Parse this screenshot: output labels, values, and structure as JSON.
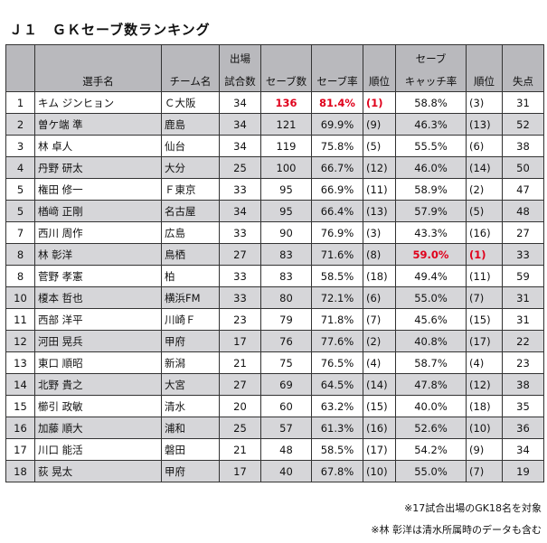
{
  "title": "Ｊ１　ＧＫセーブ数ランキング",
  "headers": {
    "top_matches": "出場",
    "top_catch": "セーブ",
    "name": "選手名",
    "team": "チーム名",
    "matches": "試合数",
    "saves": "セーブ数",
    "save_rate": "セーブ率",
    "rank1": "順位",
    "catch_rate": "キャッチ率",
    "rank2": "順位",
    "goals": "失点"
  },
  "rows": [
    {
      "no": "1",
      "name": "キム ジンヒョン",
      "team": "Ｃ大阪",
      "matches": "34",
      "saves": "136",
      "save_rate": "81.4%",
      "rank1": "(1)",
      "catch_rate": "58.8%",
      "rank2": "(3)",
      "goals": "31"
    },
    {
      "no": "2",
      "name": "曽ケ端 準",
      "team": "鹿島",
      "matches": "34",
      "saves": "121",
      "save_rate": "69.9%",
      "rank1": "(9)",
      "catch_rate": "46.3%",
      "rank2": "(13)",
      "goals": "52"
    },
    {
      "no": "3",
      "name": "林 卓人",
      "team": "仙台",
      "matches": "34",
      "saves": "119",
      "save_rate": "75.8%",
      "rank1": "(5)",
      "catch_rate": "55.5%",
      "rank2": "(6)",
      "goals": "38"
    },
    {
      "no": "4",
      "name": "丹野 研太",
      "team": "大分",
      "matches": "25",
      "saves": "100",
      "save_rate": "66.7%",
      "rank1": "(12)",
      "catch_rate": "46.0%",
      "rank2": "(14)",
      "goals": "50"
    },
    {
      "no": "5",
      "name": "権田 修一",
      "team": "Ｆ東京",
      "matches": "33",
      "saves": "95",
      "save_rate": "66.9%",
      "rank1": "(11)",
      "catch_rate": "58.9%",
      "rank2": "(2)",
      "goals": "47"
    },
    {
      "no": "5",
      "name": "楢﨑 正剛",
      "team": "名古屋",
      "matches": "34",
      "saves": "95",
      "save_rate": "66.4%",
      "rank1": "(13)",
      "catch_rate": "57.9%",
      "rank2": "(5)",
      "goals": "48"
    },
    {
      "no": "7",
      "name": "西川 周作",
      "team": "広島",
      "matches": "33",
      "saves": "90",
      "save_rate": "76.9%",
      "rank1": "(3)",
      "catch_rate": "43.3%",
      "rank2": "(16)",
      "goals": "27"
    },
    {
      "no": "8",
      "name": "林 彰洋",
      "team": "鳥栖",
      "matches": "27",
      "saves": "83",
      "save_rate": "71.6%",
      "rank1": "(8)",
      "catch_rate": "59.0%",
      "rank2": "(1)",
      "goals": "33"
    },
    {
      "no": "8",
      "name": "菅野 孝憲",
      "team": "柏",
      "matches": "33",
      "saves": "83",
      "save_rate": "58.5%",
      "rank1": "(18)",
      "catch_rate": "49.4%",
      "rank2": "(11)",
      "goals": "59"
    },
    {
      "no": "10",
      "name": "榎本 哲也",
      "team": "横浜FM",
      "matches": "33",
      "saves": "80",
      "save_rate": "72.1%",
      "rank1": "(6)",
      "catch_rate": "55.0%",
      "rank2": "(7)",
      "goals": "31"
    },
    {
      "no": "11",
      "name": "西部 洋平",
      "team": "川崎Ｆ",
      "matches": "23",
      "saves": "79",
      "save_rate": "71.8%",
      "rank1": "(7)",
      "catch_rate": "45.6%",
      "rank2": "(15)",
      "goals": "31"
    },
    {
      "no": "12",
      "name": "河田 晃兵",
      "team": "甲府",
      "matches": "17",
      "saves": "76",
      "save_rate": "77.6%",
      "rank1": "(2)",
      "catch_rate": "40.8%",
      "rank2": "(17)",
      "goals": "22"
    },
    {
      "no": "13",
      "name": "東口 順昭",
      "team": "新潟",
      "matches": "21",
      "saves": "75",
      "save_rate": "76.5%",
      "rank1": "(4)",
      "catch_rate": "58.7%",
      "rank2": "(4)",
      "goals": "23"
    },
    {
      "no": "14",
      "name": "北野 貴之",
      "team": "大宮",
      "matches": "27",
      "saves": "69",
      "save_rate": "64.5%",
      "rank1": "(14)",
      "catch_rate": "47.8%",
      "rank2": "(12)",
      "goals": "38"
    },
    {
      "no": "15",
      "name": "櫛引 政敏",
      "team": "清水",
      "matches": "20",
      "saves": "60",
      "save_rate": "63.2%",
      "rank1": "(15)",
      "catch_rate": "40.0%",
      "rank2": "(18)",
      "goals": "35"
    },
    {
      "no": "16",
      "name": "加藤 順大",
      "team": "浦和",
      "matches": "25",
      "saves": "57",
      "save_rate": "61.3%",
      "rank1": "(16)",
      "catch_rate": "52.6%",
      "rank2": "(10)",
      "goals": "36"
    },
    {
      "no": "17",
      "name": "川口 能活",
      "team": "磐田",
      "matches": "21",
      "saves": "48",
      "save_rate": "58.5%",
      "rank1": "(17)",
      "catch_rate": "54.2%",
      "rank2": "(9)",
      "goals": "34"
    },
    {
      "no": "18",
      "name": "荻 晃太",
      "team": "甲府",
      "matches": "17",
      "saves": "40",
      "save_rate": "67.8%",
      "rank1": "(10)",
      "catch_rate": "55.0%",
      "rank2": "(7)",
      "goals": "19"
    }
  ],
  "highlights": {
    "highlight_color": "#e0001b",
    "alt_row_color": "#d6d6d9",
    "header_color": "#b9b9bd"
  },
  "footnotes": [
    "※17試合出場のGK18名を対象",
    "※林 彰洋は清水所属時のデータも含む"
  ]
}
